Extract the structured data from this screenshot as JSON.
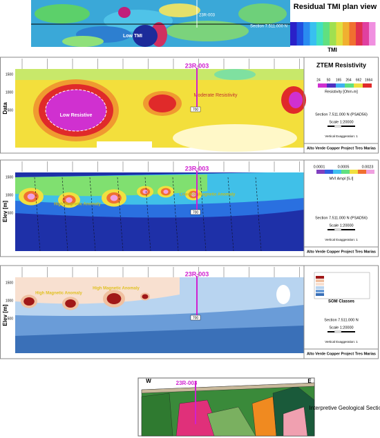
{
  "top": {
    "title": "Residual TMI plan view",
    "legend_label": "TMI",
    "hole": "23R-003",
    "anomaly": "Low TMI",
    "section": "Section 7.511.000 N"
  },
  "ztem": {
    "y_label": "Data",
    "yticks": [
      "1500",
      "1000",
      "500"
    ],
    "title": "ZTEM Resistivity",
    "scale_labels": [
      "24",
      "50",
      "165",
      "264",
      "662",
      "1664"
    ],
    "unit": "Resistivity [Ohm-m]",
    "section": "Section 7.511.000 N (PSAD56)",
    "scale": "Scale 1:20000",
    "exaggeration": "Vertical Exaggeration: 1",
    "footer": "Alto Verde Copper Project Tres Marias",
    "hole": "23R-003",
    "depth": "700",
    "annotations": [
      "Low Resistive",
      "Moderate Resistivity"
    ]
  },
  "mvi": {
    "y_label": "Elev [m]",
    "yticks": [
      "1500",
      "1000",
      "500"
    ],
    "scale_labels": [
      "0.0001",
      "0.0005",
      "0.0023"
    ],
    "unit": "MVI Ampl [S.I]",
    "section": "Section 7.511.000 N (PSAD56)",
    "scale": "Scale 1:20000",
    "exaggeration": "Vertical Exaggeration: 1",
    "footer": "Alto Verde Copper Project Tres Marias",
    "hole": "23R-003",
    "depth": "700",
    "annotations": [
      "High Magnetic Anomaly",
      "Low-Mod Magnetic Anomaly"
    ]
  },
  "som": {
    "y_label": "Elev [m]",
    "yticks": [
      "1500",
      "1000",
      "500"
    ],
    "legend_title": "SOM Classes",
    "section": "Section 7.511.000 N",
    "scale": "Scale 1:20000",
    "exaggeration": "Vertical Exaggeration: 1",
    "footer": "Alto Verde Copper Project Tres Marias",
    "hole": "23R-003",
    "depth": "700",
    "annotations": [
      "High Magnetic Anomaly",
      "High Magnetic Anomaly"
    ]
  },
  "geology": {
    "title": "Interpretive Geological Section",
    "west": "W",
    "east": "E",
    "hole": "23R-003"
  }
}
